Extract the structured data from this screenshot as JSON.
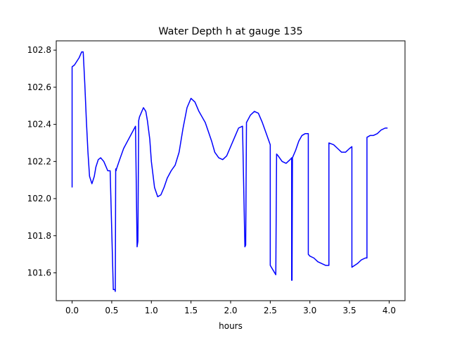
{
  "chart_data": {
    "type": "line",
    "title": "Water Depth h at gauge 135",
    "xlabel": "hours",
    "ylabel": "",
    "xlim": [
      -0.2,
      4.2
    ],
    "ylim": [
      101.45,
      102.85
    ],
    "grid": false,
    "xticks": [
      0.0,
      0.5,
      1.0,
      1.5,
      2.0,
      2.5,
      3.0,
      3.5,
      4.0
    ],
    "xtick_labels": [
      "0.0",
      "0.5",
      "1.0",
      "1.5",
      "2.0",
      "2.5",
      "3.0",
      "3.5",
      "4.0"
    ],
    "yticks": [
      101.6,
      101.8,
      102.0,
      102.2,
      102.4,
      102.6,
      102.8
    ],
    "ytick_labels": [
      "101.6",
      "101.8",
      "102.0",
      "102.2",
      "102.4",
      "102.6",
      "102.8"
    ],
    "series": [
      {
        "color": "#0000ff",
        "x": [
          0.0,
          0.0,
          0.03,
          0.06,
          0.09,
          0.12,
          0.14,
          0.16,
          0.18,
          0.2,
          0.22,
          0.25,
          0.28,
          0.3,
          0.33,
          0.36,
          0.4,
          0.45,
          0.48,
          0.52,
          0.54,
          0.545,
          0.55,
          0.555,
          0.56,
          0.6,
          0.65,
          0.7,
          0.75,
          0.8,
          0.82,
          0.82,
          0.83,
          0.84,
          0.85,
          0.85,
          0.9,
          0.93,
          0.95,
          0.98,
          1.0,
          1.04,
          1.08,
          1.12,
          1.16,
          1.2,
          1.25,
          1.3,
          1.35,
          1.4,
          1.45,
          1.5,
          1.55,
          1.6,
          1.64,
          1.68,
          1.72,
          1.76,
          1.8,
          1.85,
          1.9,
          1.95,
          2.0,
          2.05,
          2.1,
          2.15,
          2.18,
          2.18,
          2.19,
          2.2,
          2.2,
          2.25,
          2.3,
          2.35,
          2.4,
          2.45,
          2.5,
          2.5,
          2.57,
          2.58,
          2.6,
          2.65,
          2.7,
          2.75,
          2.77,
          2.77,
          2.775,
          2.78,
          2.78,
          2.82,
          2.86,
          2.9,
          2.94,
          2.98,
          2.98,
          3.0,
          3.05,
          3.1,
          3.15,
          3.2,
          3.24,
          3.24,
          3.3,
          3.35,
          3.4,
          3.45,
          3.5,
          3.53,
          3.53,
          3.6,
          3.65,
          3.7,
          3.72,
          3.72,
          3.76,
          3.8,
          3.85,
          3.9,
          3.95,
          3.98
        ],
        "y": [
          102.06,
          102.71,
          102.72,
          102.74,
          102.76,
          102.79,
          102.79,
          102.62,
          102.42,
          102.25,
          102.12,
          102.08,
          102.12,
          102.17,
          102.21,
          102.22,
          102.2,
          102.15,
          102.15,
          101.51,
          101.51,
          101.5,
          102.16,
          102.15,
          102.16,
          102.21,
          102.27,
          102.31,
          102.35,
          102.39,
          101.74,
          101.74,
          101.77,
          102.42,
          102.44,
          102.44,
          102.49,
          102.47,
          102.42,
          102.32,
          102.2,
          102.06,
          102.01,
          102.02,
          102.06,
          102.11,
          102.15,
          102.18,
          102.25,
          102.38,
          102.49,
          102.54,
          102.52,
          102.47,
          102.44,
          102.41,
          102.36,
          102.31,
          102.25,
          102.22,
          102.21,
          102.23,
          102.28,
          102.33,
          102.38,
          102.39,
          101.74,
          101.74,
          101.75,
          102.41,
          102.41,
          102.45,
          102.47,
          102.46,
          102.41,
          102.35,
          102.29,
          101.64,
          101.59,
          102.24,
          102.23,
          102.2,
          102.19,
          102.21,
          102.22,
          101.56,
          101.56,
          102.21,
          102.22,
          102.26,
          102.31,
          102.34,
          102.35,
          102.35,
          101.7,
          101.69,
          101.68,
          101.66,
          101.65,
          101.64,
          101.64,
          102.3,
          102.29,
          102.27,
          102.25,
          102.25,
          102.27,
          102.28,
          101.63,
          101.65,
          101.67,
          101.68,
          101.68,
          102.33,
          102.34,
          102.34,
          102.35,
          102.37,
          102.38,
          102.38
        ]
      }
    ]
  }
}
